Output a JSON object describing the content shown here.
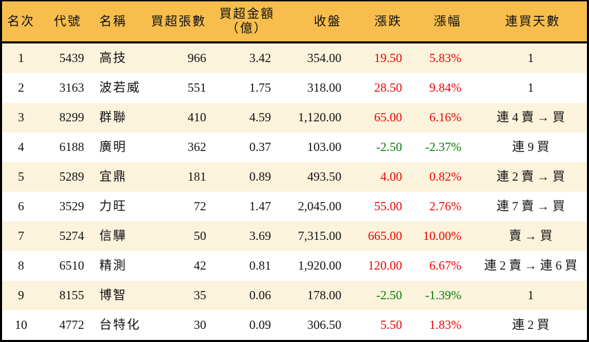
{
  "colors": {
    "header_bg": "#F7BE4D",
    "stripe_bg": "#FCF3DC",
    "row_bg": "#FFFFFF",
    "border": "#000000",
    "text": "#111111",
    "up_red": "#EE0000",
    "down_green": "#007E00"
  },
  "chart_data": {
    "type": "table",
    "title": "",
    "columns": [
      {
        "key": "rank",
        "label": "名次"
      },
      {
        "key": "code",
        "label": "代號"
      },
      {
        "key": "name",
        "label": "名稱"
      },
      {
        "key": "volume",
        "label": "買超張數"
      },
      {
        "key": "amount",
        "label": "買超金額",
        "label_line2": "（億）"
      },
      {
        "key": "close",
        "label": "收盤"
      },
      {
        "key": "change",
        "label": "漲跌"
      },
      {
        "key": "change_pct",
        "label": "漲幅"
      },
      {
        "key": "streak",
        "label": "連買天數"
      }
    ],
    "rows": [
      {
        "rank": "1",
        "code": "5439",
        "name": "高技",
        "volume": "966",
        "amount": "3.42",
        "close": "354.00",
        "change": "19.50",
        "change_pct": "5.83%",
        "streak": "1",
        "trend": "up"
      },
      {
        "rank": "2",
        "code": "3163",
        "name": "波若威",
        "volume": "551",
        "amount": "1.75",
        "close": "318.00",
        "change": "28.50",
        "change_pct": "9.84%",
        "streak": "1",
        "trend": "up"
      },
      {
        "rank": "3",
        "code": "8299",
        "name": "群聯",
        "volume": "410",
        "amount": "4.59",
        "close": "1,120.00",
        "change": "65.00",
        "change_pct": "6.16%",
        "streak": "連 4 賣 → 買",
        "trend": "up"
      },
      {
        "rank": "4",
        "code": "6188",
        "name": "廣明",
        "volume": "362",
        "amount": "0.37",
        "close": "103.00",
        "change": "-2.50",
        "change_pct": "-2.37%",
        "streak": "連 9 買",
        "trend": "down"
      },
      {
        "rank": "5",
        "code": "5289",
        "name": "宜鼎",
        "volume": "181",
        "amount": "0.89",
        "close": "493.50",
        "change": "4.00",
        "change_pct": "0.82%",
        "streak": "連 2 賣 → 買",
        "trend": "up"
      },
      {
        "rank": "6",
        "code": "3529",
        "name": "力旺",
        "volume": "72",
        "amount": "1.47",
        "close": "2,045.00",
        "change": "55.00",
        "change_pct": "2.76%",
        "streak": "連 7 賣 → 買",
        "trend": "up"
      },
      {
        "rank": "7",
        "code": "5274",
        "name": "信驊",
        "volume": "50",
        "amount": "3.69",
        "close": "7,315.00",
        "change": "665.00",
        "change_pct": "10.00%",
        "streak": "賣 → 買",
        "trend": "up"
      },
      {
        "rank": "8",
        "code": "6510",
        "name": "精測",
        "volume": "42",
        "amount": "0.81",
        "close": "1,920.00",
        "change": "120.00",
        "change_pct": "6.67%",
        "streak": "連 2 賣 → 連 6 買",
        "trend": "up"
      },
      {
        "rank": "9",
        "code": "8155",
        "name": "博智",
        "volume": "35",
        "amount": "0.06",
        "close": "178.00",
        "change": "-2.50",
        "change_pct": "-1.39%",
        "streak": "1",
        "trend": "down"
      },
      {
        "rank": "10",
        "code": "4772",
        "name": "台特化",
        "volume": "30",
        "amount": "0.09",
        "close": "306.50",
        "change": "5.50",
        "change_pct": "1.83%",
        "streak": "連 2 買",
        "trend": "up"
      }
    ]
  }
}
